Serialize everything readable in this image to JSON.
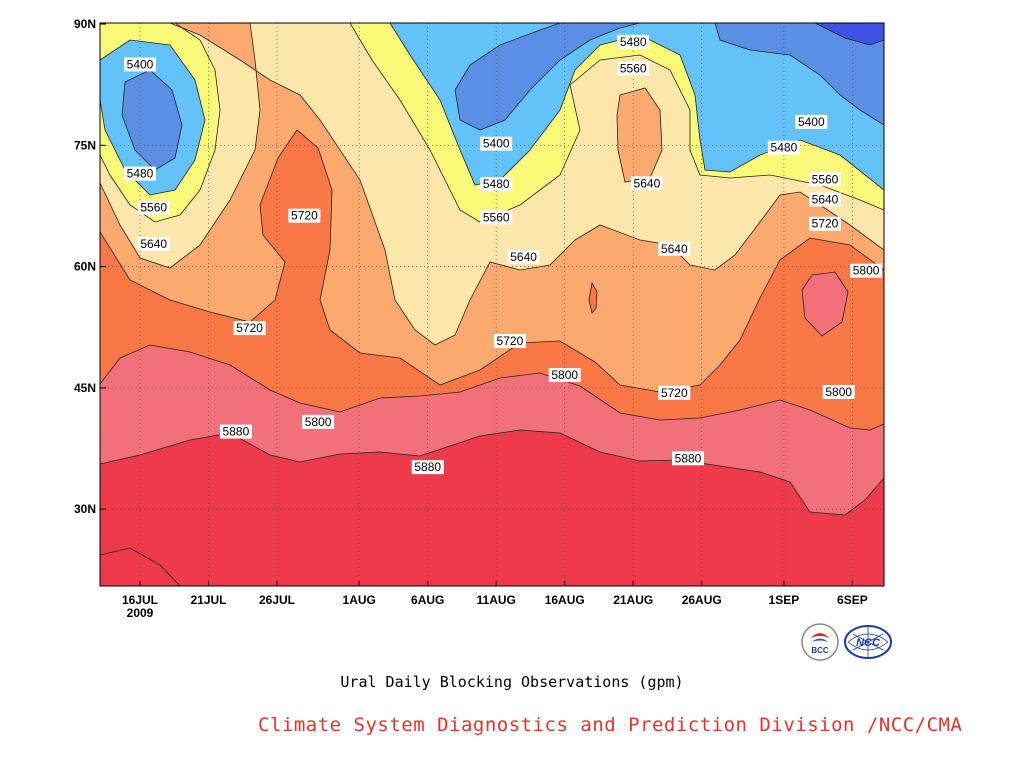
{
  "chart_data": {
    "type": "heatmap",
    "title": "Ural Daily Blocking Observations (gpm)",
    "x": {
      "ticks": [
        {
          "date": "2009-07-16",
          "label": "16JUL",
          "sublabel": "2009"
        },
        {
          "date": "2009-07-21",
          "label": "21JUL"
        },
        {
          "date": "2009-07-26",
          "label": "26JUL"
        },
        {
          "date": "2009-08-01",
          "label": "1AUG"
        },
        {
          "date": "2009-08-06",
          "label": "6AUG"
        },
        {
          "date": "2009-08-11",
          "label": "11AUG"
        },
        {
          "date": "2009-08-16",
          "label": "16AUG"
        },
        {
          "date": "2009-08-21",
          "label": "21AUG"
        },
        {
          "date": "2009-08-26",
          "label": "26AUG"
        },
        {
          "date": "2009-09-01",
          "label": "1SEP"
        },
        {
          "date": "2009-09-06",
          "label": "6SEP"
        }
      ]
    },
    "y": {
      "ticks": [
        {
          "lat": 30,
          "label": "30N"
        },
        {
          "lat": 45,
          "label": "45N"
        },
        {
          "lat": 60,
          "label": "60N"
        },
        {
          "lat": 75,
          "label": "75N"
        },
        {
          "lat": 90,
          "label": "90N"
        }
      ]
    },
    "contour_levels": [
      5400,
      5480,
      5560,
      5640,
      5720,
      5800,
      5880
    ],
    "fill_colors": [
      "#3f52e6",
      "#5b8fe6",
      "#63c3f8",
      "#fafa78",
      "#fde6aa",
      "#fca96f",
      "#fa7846",
      "#f2707a",
      "#ee3a4b"
    ],
    "contour_labels": [
      {
        "value": 5400,
        "date": "2009-07-16",
        "lat": 85
      },
      {
        "value": 5480,
        "date": "2009-07-16",
        "lat": 71.5
      },
      {
        "value": 5560,
        "date": "2009-07-17",
        "lat": 67.3
      },
      {
        "value": 5640,
        "date": "2009-07-17",
        "lat": 62.8
      },
      {
        "value": 5720,
        "date": "2009-07-24",
        "lat": 52.4
      },
      {
        "value": 5720,
        "date": "2009-07-28",
        "lat": 66.3
      },
      {
        "value": 5880,
        "date": "2009-07-23",
        "lat": 39.6
      },
      {
        "value": 5800,
        "date": "2009-07-29",
        "lat": 40.8
      },
      {
        "value": 5880,
        "date": "2009-08-06",
        "lat": 35.2
      },
      {
        "value": 5400,
        "date": "2009-08-11",
        "lat": 75.2
      },
      {
        "value": 5480,
        "date": "2009-08-11",
        "lat": 70.2
      },
      {
        "value": 5560,
        "date": "2009-08-11",
        "lat": 66.1
      },
      {
        "value": 5640,
        "date": "2009-08-13",
        "lat": 61.2
      },
      {
        "value": 5720,
        "date": "2009-08-12",
        "lat": 50.8
      },
      {
        "value": 5800,
        "date": "2009-08-16",
        "lat": 46.6
      },
      {
        "value": 5480,
        "date": "2009-08-21",
        "lat": 87.8
      },
      {
        "value": 5560,
        "date": "2009-08-21",
        "lat": 84.5
      },
      {
        "value": 5640,
        "date": "2009-08-22",
        "lat": 70.3
      },
      {
        "value": 5640,
        "date": "2009-08-24",
        "lat": 62.2
      },
      {
        "value": 5720,
        "date": "2009-08-24",
        "lat": 44.4
      },
      {
        "value": 5880,
        "date": "2009-08-25",
        "lat": 36.3
      },
      {
        "value": 5400,
        "date": "2009-09-03",
        "lat": 77.9
      },
      {
        "value": 5480,
        "date": "2009-09-01",
        "lat": 74.7
      },
      {
        "value": 5560,
        "date": "2009-09-04",
        "lat": 70.8
      },
      {
        "value": 5640,
        "date": "2009-09-04",
        "lat": 68.3
      },
      {
        "value": 5720,
        "date": "2009-09-04",
        "lat": 65.3
      },
      {
        "value": 5800,
        "date": "2009-09-05",
        "lat": 44.5
      },
      {
        "value": 5800,
        "date": "2009-09-07",
        "lat": 59.5
      }
    ],
    "grid": true
  },
  "captions": {
    "title": "Ural Daily Blocking Observations (gpm)",
    "credit": "Climate System Diagnostics and Prediction Division /NCC/CMA"
  },
  "logos": {
    "bcc": {
      "icon": "bcc-logo-icon",
      "text": "BCC"
    },
    "ncc": {
      "icon": "ncc-logo-icon",
      "text": "NCC"
    }
  }
}
